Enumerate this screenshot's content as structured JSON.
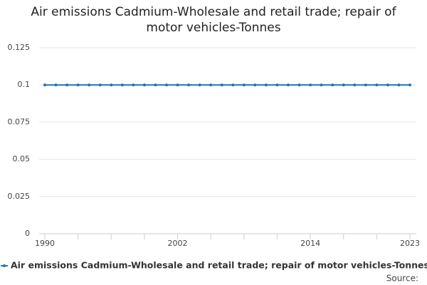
{
  "chart_data": {
    "type": "line",
    "title": "Air emissions Cadmium-Wholesale and retail trade; repair of motor vehicles-Tonnes",
    "x": [
      1990,
      1991,
      1992,
      1993,
      1994,
      1995,
      1996,
      1997,
      1998,
      1999,
      2000,
      2001,
      2002,
      2003,
      2004,
      2005,
      2006,
      2007,
      2008,
      2009,
      2010,
      2011,
      2012,
      2013,
      2014,
      2015,
      2016,
      2017,
      2018,
      2019,
      2020,
      2021,
      2022,
      2023
    ],
    "series": [
      {
        "name": "Air emissions Cadmium-Wholesale and retail trade; repair of motor vehicles-Tonnes",
        "color": "#1f77b4",
        "values": [
          0.1,
          0.1,
          0.1,
          0.1,
          0.1,
          0.1,
          0.1,
          0.1,
          0.1,
          0.1,
          0.1,
          0.1,
          0.1,
          0.1,
          0.1,
          0.1,
          0.1,
          0.1,
          0.1,
          0.1,
          0.1,
          0.1,
          0.1,
          0.1,
          0.1,
          0.1,
          0.1,
          0.1,
          0.1,
          0.1,
          0.1,
          0.1,
          0.1,
          0.1
        ]
      }
    ],
    "xlim": [
      1990,
      2023
    ],
    "xticks": [
      1990,
      2002,
      2014,
      2023
    ],
    "xminorticks": [
      1993,
      1996,
      1999,
      2005,
      2008,
      2011,
      2017,
      2020
    ],
    "ylim": [
      0,
      0.125
    ],
    "yticks": [
      0,
      0.025,
      0.05,
      0.075,
      0.1,
      0.125
    ],
    "grid": true,
    "legend": "bottom",
    "source": "Source:"
  }
}
